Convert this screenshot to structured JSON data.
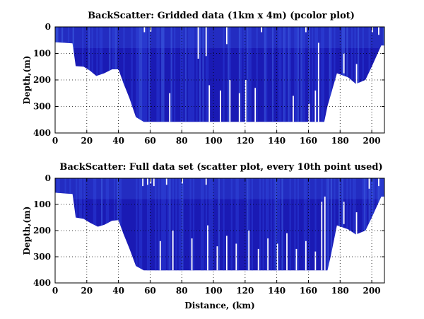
{
  "chart_data": [
    {
      "type": "heatmap",
      "title": "BackScatter: Gridded data (1km x 4m) (pcolor plot)",
      "xlabel": "",
      "ylabel": "Depth,(m)",
      "xlim": [
        0,
        208
      ],
      "ylim": [
        0,
        400
      ],
      "y_reversed": true,
      "xticks": [
        0,
        20,
        40,
        60,
        80,
        100,
        120,
        140,
        160,
        180,
        200
      ],
      "yticks": [
        0,
        100,
        200,
        300,
        400
      ],
      "grid": true,
      "colors": {
        "dark": "#1a1ab4",
        "mid": "#2a3ad6",
        "light": "#3f63e6"
      },
      "data_extent": {
        "x_start": 0,
        "x_end": 208,
        "top_depth": 0
      },
      "seabed_profile": [
        [
          0,
          58
        ],
        [
          6,
          60
        ],
        [
          11,
          62
        ],
        [
          13,
          148
        ],
        [
          18,
          150
        ],
        [
          22,
          165
        ],
        [
          26,
          185
        ],
        [
          31,
          175
        ],
        [
          36,
          160
        ],
        [
          40,
          160
        ],
        [
          43,
          210
        ],
        [
          47,
          270
        ],
        [
          51,
          340
        ],
        [
          56,
          358
        ],
        [
          60,
          358
        ],
        [
          100,
          358
        ],
        [
          140,
          358
        ],
        [
          170,
          358
        ],
        [
          172,
          300
        ],
        [
          178,
          175
        ],
        [
          185,
          190
        ],
        [
          190,
          215
        ],
        [
          196,
          200
        ],
        [
          200,
          150
        ],
        [
          203,
          110
        ],
        [
          206,
          70
        ],
        [
          208,
          70
        ]
      ],
      "gaps": [
        {
          "x": 56,
          "top": 0,
          "bottom": 20
        },
        {
          "x": 60,
          "top": 0,
          "bottom": 18
        },
        {
          "x": 90,
          "top": 0,
          "bottom": 120
        },
        {
          "x": 95,
          "top": 0,
          "bottom": 110
        },
        {
          "x": 108,
          "top": 0,
          "bottom": 65
        },
        {
          "x": 130,
          "top": 0,
          "bottom": 20
        },
        {
          "x": 158,
          "top": 0,
          "bottom": 20
        },
        {
          "x": 200,
          "top": 0,
          "bottom": 20
        },
        {
          "x": 204,
          "top": 0,
          "bottom": 30
        },
        {
          "x": 72,
          "top": 250,
          "bottom": 358
        },
        {
          "x": 97,
          "top": 220,
          "bottom": 358
        },
        {
          "x": 104,
          "top": 240,
          "bottom": 358
        },
        {
          "x": 110,
          "top": 200,
          "bottom": 358
        },
        {
          "x": 116,
          "top": 250,
          "bottom": 358
        },
        {
          "x": 120,
          "top": 200,
          "bottom": 358
        },
        {
          "x": 126,
          "top": 230,
          "bottom": 358
        },
        {
          "x": 150,
          "top": 260,
          "bottom": 358
        },
        {
          "x": 160,
          "top": 290,
          "bottom": 358
        },
        {
          "x": 164,
          "top": 240,
          "bottom": 358
        },
        {
          "x": 166,
          "top": 60,
          "bottom": 358
        },
        {
          "x": 182,
          "top": 100,
          "bottom": 175
        },
        {
          "x": 190,
          "top": 140,
          "bottom": 215
        }
      ]
    },
    {
      "type": "scatter",
      "title": "BackScatter: Full data set (scatter plot, every 10th point used)",
      "xlabel": "Distance, (km)",
      "ylabel": "Depth,(m)",
      "xlim": [
        0,
        208
      ],
      "ylim": [
        0,
        400
      ],
      "y_reversed": true,
      "xticks": [
        0,
        20,
        40,
        60,
        80,
        100,
        120,
        140,
        160,
        180,
        200
      ],
      "yticks": [
        0,
        100,
        200,
        300,
        400
      ],
      "grid": true,
      "colors": {
        "dark": "#1a1ab4",
        "mid": "#2a3ad6",
        "light": "#3f63e6"
      },
      "data_extent": {
        "x_start": 0,
        "x_end": 208,
        "top_depth": 0
      },
      "seabed_profile": [
        [
          0,
          55
        ],
        [
          6,
          58
        ],
        [
          11,
          60
        ],
        [
          13,
          150
        ],
        [
          18,
          155
        ],
        [
          22,
          170
        ],
        [
          27,
          185
        ],
        [
          31,
          178
        ],
        [
          36,
          162
        ],
        [
          40,
          160
        ],
        [
          43,
          210
        ],
        [
          47,
          270
        ],
        [
          51,
          335
        ],
        [
          56,
          352
        ],
        [
          60,
          352
        ],
        [
          100,
          352
        ],
        [
          140,
          352
        ],
        [
          172,
          352
        ],
        [
          174,
          300
        ],
        [
          178,
          180
        ],
        [
          185,
          195
        ],
        [
          190,
          215
        ],
        [
          196,
          200
        ],
        [
          200,
          150
        ],
        [
          203,
          110
        ],
        [
          206,
          70
        ],
        [
          208,
          70
        ]
      ],
      "gaps": [
        {
          "x": 55,
          "top": 0,
          "bottom": 30
        },
        {
          "x": 58,
          "top": 0,
          "bottom": 25
        },
        {
          "x": 60,
          "top": 0,
          "bottom": 20
        },
        {
          "x": 62,
          "top": 0,
          "bottom": 30
        },
        {
          "x": 70,
          "top": 0,
          "bottom": 25
        },
        {
          "x": 80,
          "top": 0,
          "bottom": 20
        },
        {
          "x": 95,
          "top": 0,
          "bottom": 25
        },
        {
          "x": 198,
          "top": 0,
          "bottom": 40
        },
        {
          "x": 204,
          "top": 0,
          "bottom": 30
        },
        {
          "x": 66,
          "top": 240,
          "bottom": 352
        },
        {
          "x": 74,
          "top": 200,
          "bottom": 352
        },
        {
          "x": 86,
          "top": 230,
          "bottom": 352
        },
        {
          "x": 96,
          "top": 180,
          "bottom": 352
        },
        {
          "x": 102,
          "top": 260,
          "bottom": 352
        },
        {
          "x": 108,
          "top": 220,
          "bottom": 352
        },
        {
          "x": 114,
          "top": 250,
          "bottom": 352
        },
        {
          "x": 122,
          "top": 200,
          "bottom": 352
        },
        {
          "x": 128,
          "top": 270,
          "bottom": 352
        },
        {
          "x": 134,
          "top": 230,
          "bottom": 352
        },
        {
          "x": 140,
          "top": 250,
          "bottom": 352
        },
        {
          "x": 146,
          "top": 210,
          "bottom": 352
        },
        {
          "x": 152,
          "top": 270,
          "bottom": 352
        },
        {
          "x": 158,
          "top": 240,
          "bottom": 352
        },
        {
          "x": 164,
          "top": 280,
          "bottom": 352
        },
        {
          "x": 168,
          "top": 90,
          "bottom": 352
        },
        {
          "x": 170,
          "top": 70,
          "bottom": 352
        },
        {
          "x": 182,
          "top": 90,
          "bottom": 175
        },
        {
          "x": 190,
          "top": 130,
          "bottom": 215
        }
      ]
    }
  ]
}
